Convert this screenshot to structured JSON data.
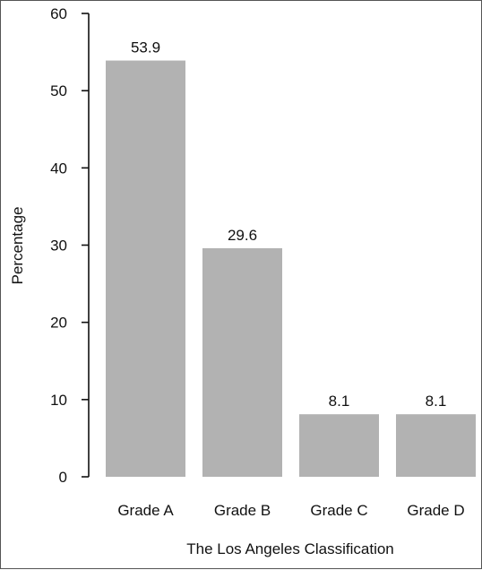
{
  "chart_data": {
    "type": "bar",
    "categories": [
      "Grade A",
      "Grade B",
      "Grade C",
      "Grade D"
    ],
    "values": [
      53.9,
      29.6,
      8.1,
      8.1
    ],
    "data_labels": [
      "53.9",
      "29.6",
      "8.1",
      "8.1"
    ],
    "title": "",
    "xlabel": "The Los Angeles Classification",
    "ylabel": "Percentage",
    "ylim": [
      0,
      60
    ],
    "yticks": [
      0,
      10,
      20,
      30,
      40,
      50,
      60
    ],
    "ytick_labels": [
      "0",
      "10",
      "20",
      "30",
      "40",
      "50",
      "60"
    ],
    "grid": false,
    "legend": "none",
    "colors": {
      "bar": "#b2b2b2",
      "axis": "#111111",
      "text": "#111111"
    }
  }
}
